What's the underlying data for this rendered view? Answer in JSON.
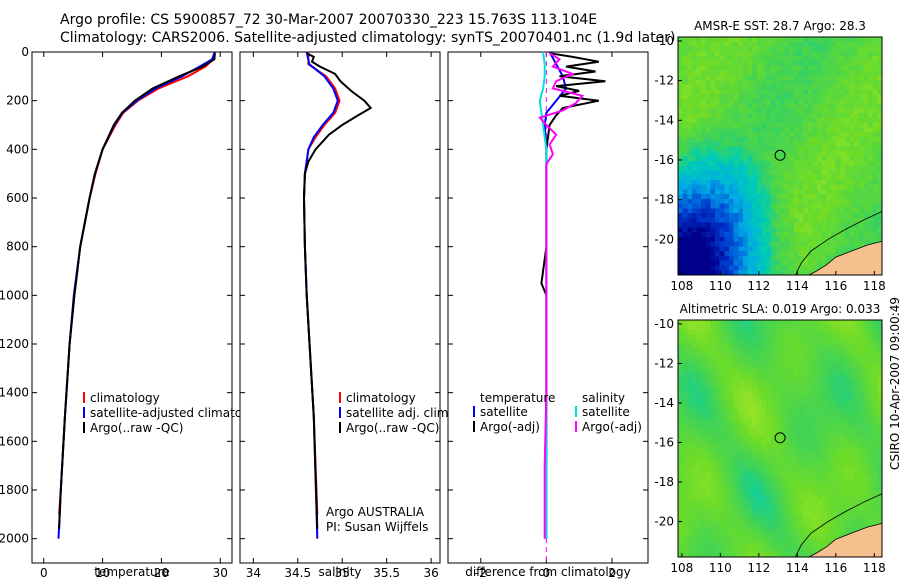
{
  "header": {
    "line1": "Argo profile: CS 5900857_72 30-Mar-2007 20070330_223 15.763S 113.104E",
    "line2": "Climatology: CARS2006. Satellite-adjusted climatology: synTS_20070401.nc (1.9d later)"
  },
  "stamp": "CSIRO 10-Apr-2007 09:00:49",
  "chart_data": [
    {
      "type": "line",
      "xlabel": "temperature",
      "xlim": [
        -2,
        32
      ],
      "xticks": [
        0,
        10,
        20,
        30
      ],
      "ylim": [
        2100,
        0
      ],
      "yticks": [
        0,
        200,
        400,
        600,
        800,
        1000,
        1200,
        1400,
        1600,
        1800,
        2000
      ],
      "legend": [
        "climatology",
        "satellite-adjusted climatology",
        "Argo(..raw -QC)"
      ],
      "series": [
        {
          "name": "climatology",
          "color": "#ff0000",
          "depth": [
            0,
            30,
            60,
            100,
            150,
            200,
            250,
            300,
            400,
            500,
            600,
            800,
            1000,
            1200,
            1500,
            1800,
            1900
          ],
          "values": [
            29.0,
            28.8,
            27.5,
            24.5,
            19.5,
            16.0,
            13.5,
            12.2,
            10.0,
            8.8,
            7.8,
            6.2,
            5.2,
            4.4,
            3.6,
            2.9,
            2.6
          ]
        },
        {
          "name": "satellite-adjusted climatology",
          "color": "#0000ff",
          "depth": [
            0,
            30,
            60,
            100,
            150,
            200,
            250,
            300,
            400,
            500,
            600,
            800,
            1000,
            1200,
            1500,
            1800,
            2000
          ],
          "values": [
            29.1,
            28.6,
            26.5,
            23.5,
            19.0,
            15.8,
            13.4,
            12.0,
            10.0,
            8.7,
            7.8,
            6.2,
            5.1,
            4.4,
            3.6,
            2.9,
            2.5
          ]
        },
        {
          "name": "Argo(..raw -QC)",
          "color": "#000000",
          "depth": [
            5,
            30,
            60,
            100,
            150,
            200,
            250,
            300,
            400,
            500,
            600,
            800,
            1000,
            1200,
            1500,
            1800,
            1960
          ],
          "values": [
            29.1,
            29.0,
            27.0,
            23.0,
            18.5,
            15.5,
            13.3,
            11.9,
            10.0,
            8.7,
            7.8,
            6.2,
            5.2,
            4.4,
            3.6,
            2.9,
            2.6
          ]
        }
      ]
    },
    {
      "type": "line",
      "xlabel": "salinity",
      "xlim": [
        33.85,
        36.1
      ],
      "xticks": [
        34,
        34.5,
        35,
        35.5,
        36
      ],
      "ylim": [
        2100,
        0
      ],
      "legend": [
        "climatology",
        "satellite adj. clim.",
        "Argo(..raw -QC)"
      ],
      "annotation": [
        "Argo AUSTRALIA",
        "PI: Susan Wijffels"
      ],
      "series": [
        {
          "name": "climatology",
          "color": "#ff0000",
          "depth": [
            0,
            50,
            100,
            150,
            200,
            250,
            300,
            350,
            400,
            450,
            500,
            600,
            800,
            1000,
            1500,
            1900
          ],
          "values": [
            34.62,
            34.62,
            34.82,
            34.92,
            34.97,
            34.92,
            34.8,
            34.7,
            34.62,
            34.6,
            34.58,
            34.57,
            34.58,
            34.6,
            34.68,
            34.72
          ]
        },
        {
          "name": "satellite adj. clim.",
          "color": "#0000ff",
          "depth": [
            0,
            50,
            100,
            150,
            200,
            250,
            300,
            350,
            400,
            450,
            500,
            600,
            800,
            1000,
            1500,
            2000
          ],
          "values": [
            34.6,
            34.63,
            34.8,
            34.9,
            34.95,
            34.9,
            34.78,
            34.68,
            34.62,
            34.6,
            34.58,
            34.57,
            34.58,
            34.6,
            34.68,
            34.72
          ]
        },
        {
          "name": "Argo(..raw -QC)",
          "color": "#000000",
          "depth": [
            5,
            20,
            40,
            60,
            90,
            120,
            160,
            200,
            230,
            260,
            300,
            340,
            400,
            450,
            500,
            600,
            800,
            1000,
            1500,
            1960
          ],
          "values": [
            34.6,
            34.68,
            34.66,
            34.75,
            34.92,
            34.98,
            35.1,
            35.25,
            35.32,
            35.18,
            35.0,
            34.85,
            34.7,
            34.62,
            34.58,
            34.57,
            34.58,
            34.6,
            34.68,
            34.72
          ]
        }
      ]
    },
    {
      "type": "line",
      "xlabel": "difference from climatology",
      "xlim": [
        -3,
        3.1
      ],
      "xticks": [
        -2,
        0,
        2
      ],
      "ylim": [
        2100,
        0
      ],
      "legend": [
        {
          "group": "temperature",
          "items": [
            "satellite",
            "Argo(-adj)"
          ]
        },
        {
          "group": "salinity",
          "items": [
            "satellite",
            "Argo(-adj)"
          ]
        }
      ],
      "series": [
        {
          "name": "temperature satellite",
          "color": "#0000ff",
          "depth": [
            0,
            50,
            100,
            150,
            200,
            250,
            300,
            400,
            500,
            800,
            1200,
            1600,
            2000
          ],
          "values": [
            0.1,
            0.3,
            0.5,
            0.6,
            0.3,
            0.0,
            -0.05,
            0.0,
            0.0,
            0.0,
            0.0,
            0.0,
            0.0
          ]
        },
        {
          "name": "temperature Argo(-adj)",
          "color": "#000000",
          "depth": [
            5,
            20,
            40,
            60,
            80,
            100,
            120,
            140,
            160,
            180,
            200,
            230,
            260,
            300,
            400,
            500,
            800,
            900,
            950,
            1000,
            1200,
            1600,
            1960
          ],
          "values": [
            0.1,
            0.8,
            1.6,
            0.6,
            1.5,
            0.4,
            1.8,
            0.3,
            1.0,
            0.4,
            1.6,
            0.5,
            0.3,
            0.1,
            0.0,
            0.0,
            0.0,
            -0.1,
            -0.15,
            0.0,
            0.0,
            0.0,
            0.0
          ]
        },
        {
          "name": "salinity satellite",
          "color": "#00e0e0",
          "depth": [
            0,
            50,
            100,
            150,
            200,
            250,
            300,
            350,
            400,
            500,
            800,
            1200,
            1600,
            2000
          ],
          "values": [
            -0.1,
            -0.05,
            -0.05,
            -0.1,
            -0.2,
            -0.15,
            -0.1,
            -0.05,
            0.0,
            0.0,
            0.0,
            0.0,
            0.0,
            0.0
          ]
        },
        {
          "name": "salinity Argo(-adj)",
          "color": "#ff00ff",
          "depth": [
            5,
            30,
            60,
            90,
            120,
            150,
            180,
            210,
            240,
            270,
            300,
            340,
            380,
            420,
            460,
            500,
            700,
            1000,
            1400,
            1700,
            2000
          ],
          "values": [
            0.1,
            0.4,
            0.2,
            0.8,
            0.3,
            0.2,
            1.1,
            0.9,
            0.5,
            -0.2,
            0.0,
            0.3,
            0.1,
            0.2,
            0.0,
            0.0,
            0.0,
            0.0,
            0.0,
            -0.05,
            -0.05
          ]
        }
      ]
    },
    {
      "type": "heatmap",
      "title": "AMSR-E SST: 28.7 Argo: 28.3",
      "xticks": [
        108,
        110,
        112,
        114,
        116,
        118
      ],
      "yticks": [
        -10,
        -12,
        -14,
        -16,
        -18,
        -20
      ],
      "xlim": [
        107.8,
        118.4
      ],
      "ylim": [
        -21.8,
        -9.8
      ],
      "marker": [
        113.104,
        -15.763
      ]
    },
    {
      "type": "heatmap",
      "title": "Altimetric SLA: 0.019 Argo: 0.033",
      "xticks": [
        108,
        110,
        112,
        114,
        116,
        118
      ],
      "yticks": [
        -10,
        -12,
        -14,
        -16,
        -18,
        -20
      ],
      "xlim": [
        107.8,
        118.4
      ],
      "ylim": [
        -21.8,
        -9.8
      ],
      "marker": [
        113.104,
        -15.763
      ]
    }
  ]
}
